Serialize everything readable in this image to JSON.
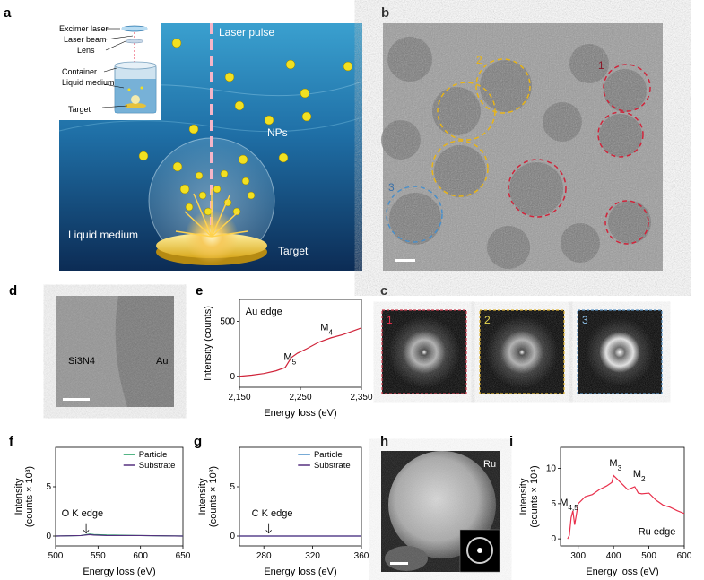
{
  "panel_labels": {
    "a": "a",
    "b": "b",
    "c": "c",
    "d": "d",
    "e": "e",
    "f": "f",
    "g": "g",
    "h": "h",
    "i": "i"
  },
  "panel_a": {
    "inset_labels": [
      "Excimer laser",
      "Laser beam",
      "Lens",
      "Container",
      "Liquid medium",
      "Target"
    ],
    "laser_pulse": "Laser pulse",
    "nps": "NPs",
    "liquid": "Liquid medium",
    "target": "Target"
  },
  "panel_b": {
    "circle_labels": [
      "1",
      "2",
      "3"
    ]
  },
  "panel_c": {
    "fft_labels": [
      "1",
      "2",
      "3"
    ]
  },
  "panel_d": {
    "left_label": "Si3N4",
    "right_label": "Au"
  },
  "panel_h": {
    "label": "Ru"
  },
  "colors": {
    "red": "#d0243a",
    "yellow": "#e8b417",
    "blue": "#4a8fc9",
    "green": "#1a9c5c",
    "purple": "#55307f",
    "pink": "#e8304c"
  },
  "chart_data": [
    {
      "id": "e",
      "type": "line",
      "title": "Au edge",
      "xlabel": "Energy loss (eV)",
      "ylabel": "Intensity (counts)",
      "xlim": [
        2150,
        2350
      ],
      "ylim": [
        -100,
        700
      ],
      "xticks": [
        "2,150",
        "2,250",
        "2,350"
      ],
      "xtick_values": [
        2150,
        2250,
        2350
      ],
      "yticks": [
        "0",
        "500"
      ],
      "ytick_values": [
        0,
        500
      ],
      "annotations": [
        {
          "text": "M5",
          "x": 2230,
          "y": 150
        },
        {
          "text": "M4",
          "x": 2290,
          "y": 420
        }
      ],
      "series": [
        {
          "x": [
            2150,
            2170,
            2190,
            2210,
            2225,
            2235,
            2245,
            2260,
            2280,
            2300,
            2320,
            2340,
            2350
          ],
          "y": [
            0,
            10,
            25,
            50,
            80,
            170,
            210,
            250,
            310,
            350,
            380,
            420,
            440
          ]
        }
      ]
    },
    {
      "id": "f",
      "type": "line",
      "annotation": "O K edge",
      "xlabel": "Energy loss (eV)",
      "ylabel": "Intensity\n(counts × 10³)",
      "xlim": [
        500,
        650
      ],
      "ylim": [
        -1,
        9
      ],
      "xticks": [
        "500",
        "550",
        "600",
        "650"
      ],
      "xtick_values": [
        500,
        550,
        600,
        650
      ],
      "yticks": [
        "0",
        "5"
      ],
      "ytick_values": [
        0,
        5
      ],
      "legend": [
        "Particle",
        "Substrate"
      ],
      "series": [
        {
          "name": "Particle",
          "x": [
            500,
            530,
            540,
            545,
            560,
            600,
            650
          ],
          "y": [
            0,
            0.05,
            0.2,
            0.15,
            0.1,
            0.05,
            0
          ]
        },
        {
          "name": "Substrate",
          "x": [
            500,
            530,
            540,
            545,
            560,
            600,
            650
          ],
          "y": [
            0,
            0.05,
            0.15,
            0.1,
            0.05,
            0.05,
            0
          ]
        }
      ]
    },
    {
      "id": "g",
      "type": "line",
      "annotation": "C K edge",
      "xlabel": "Energy loss (eV)",
      "ylabel": "Intensity\n(counts × 10³)",
      "xlim": [
        260,
        360
      ],
      "ylim": [
        -1,
        9
      ],
      "xticks": [
        "280",
        "320",
        "360"
      ],
      "xtick_values": [
        280,
        320,
        360
      ],
      "yticks": [
        "0",
        "5"
      ],
      "ytick_values": [
        0,
        5
      ],
      "legend": [
        "Particle",
        "Substrate"
      ],
      "series": [
        {
          "name": "Particle",
          "x": [
            260,
            300,
            360
          ],
          "y": [
            0,
            0,
            0
          ]
        },
        {
          "name": "Substrate",
          "x": [
            260,
            300,
            360
          ],
          "y": [
            0,
            0,
            0
          ]
        }
      ]
    },
    {
      "id": "i",
      "type": "line",
      "annotation": "Ru edge",
      "xlabel": "Energy loss (eV)",
      "ylabel": "Intensity\n(counts × 10⁴)",
      "xlim": [
        250,
        600
      ],
      "ylim": [
        -1,
        13
      ],
      "xticks": [
        "300",
        "400",
        "500",
        "600"
      ],
      "xtick_values": [
        300,
        400,
        500,
        600
      ],
      "yticks": [
        "0",
        "5",
        "10"
      ],
      "ytick_values": [
        0,
        5,
        10
      ],
      "peaks": [
        {
          "text": "M4,5",
          "x": 280,
          "y": 4
        },
        {
          "text": "M3",
          "x": 400,
          "y": 9
        },
        {
          "text": "M2",
          "x": 460,
          "y": 7.5
        }
      ],
      "series": [
        {
          "x": [
            270,
            275,
            280,
            285,
            290,
            300,
            310,
            320,
            340,
            360,
            380,
            395,
            400,
            410,
            420,
            440,
            460,
            470,
            480,
            500,
            520,
            540,
            560,
            580,
            600
          ],
          "y": [
            0,
            0.5,
            3,
            4,
            2,
            5,
            5.5,
            6,
            6.3,
            7,
            7.5,
            8,
            9,
            8.5,
            8,
            7,
            7.4,
            6.5,
            6.4,
            6.5,
            5.5,
            4.8,
            4.5,
            4,
            3.6
          ]
        }
      ]
    }
  ]
}
